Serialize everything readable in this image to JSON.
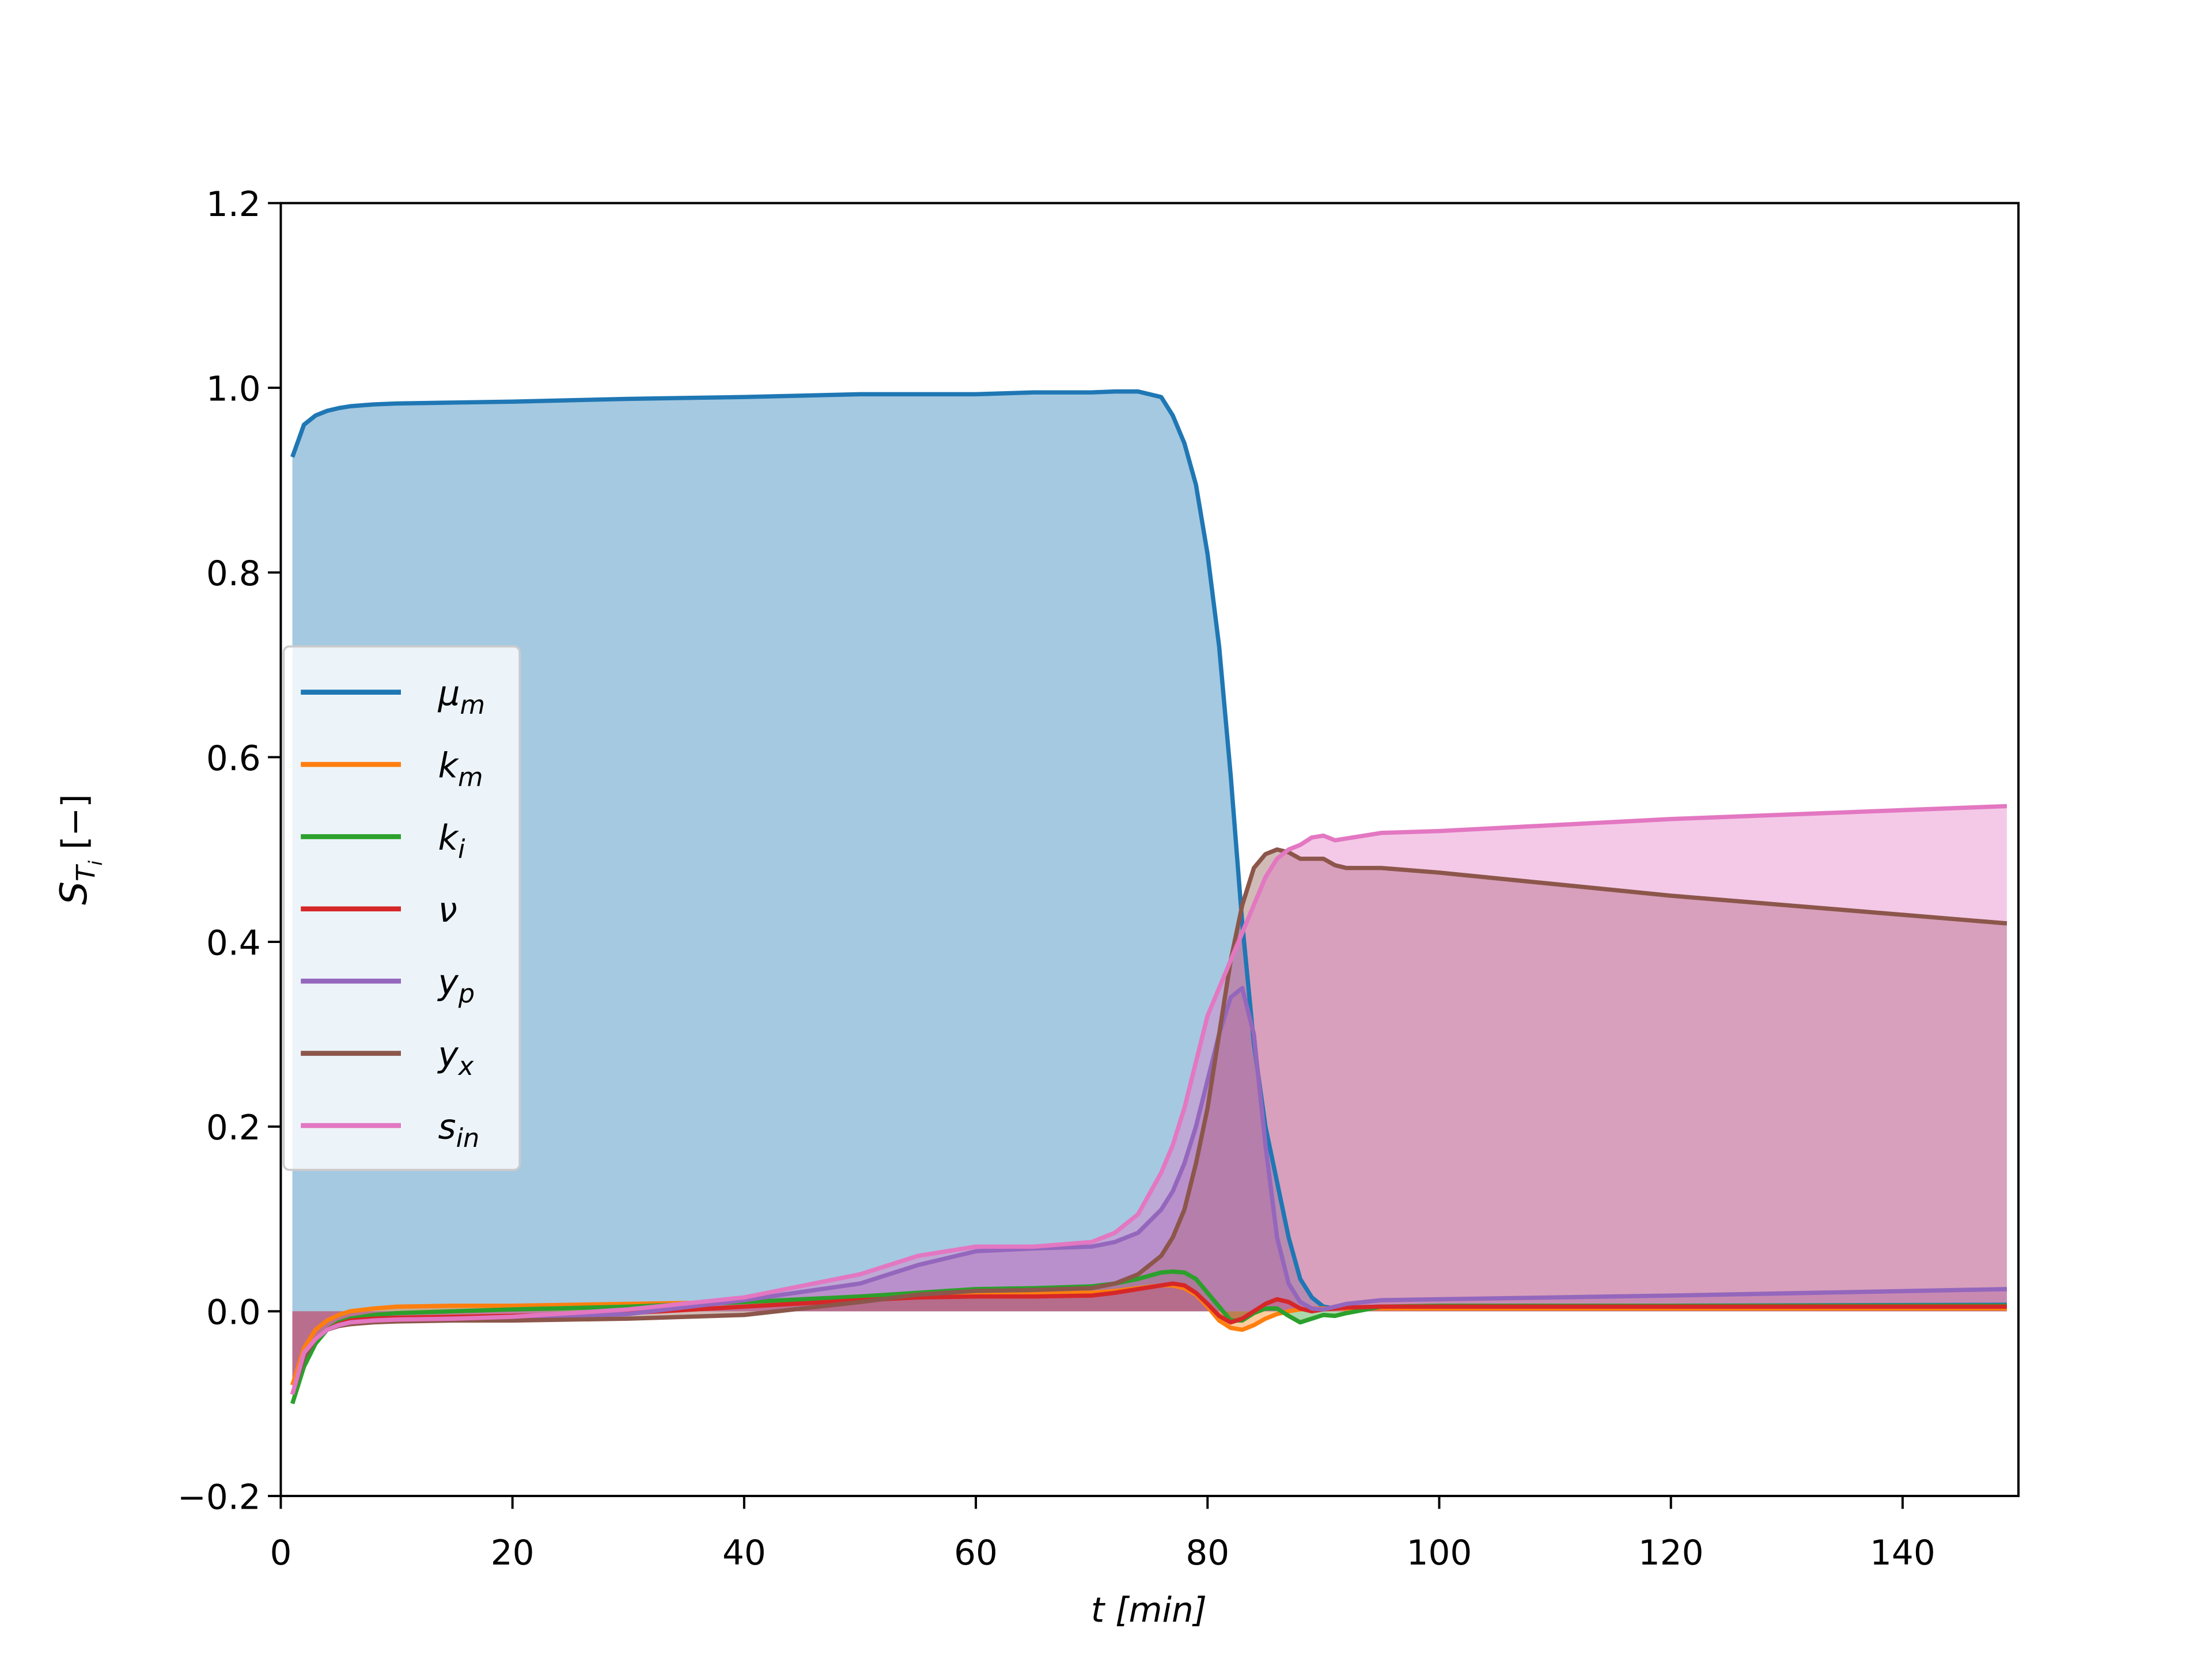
{
  "chart_data": {
    "type": "area",
    "xlabel": "t [min]",
    "ylabel": "STi [−]",
    "xlim": [
      0,
      150
    ],
    "ylim": [
      -0.2,
      1.2
    ],
    "xticks": [
      0,
      20,
      40,
      60,
      80,
      100,
      120,
      140
    ],
    "yticks": [
      {
        "value": -0.2,
        "label": "−0.2"
      },
      {
        "value": 0,
        "label": "0.0"
      },
      0.2,
      0.4,
      0.6,
      0.8,
      {
        "value": 1,
        "label": "1.0"
      },
      1.2
    ],
    "legend": "center left",
    "x": [
      1,
      2,
      3,
      4,
      5,
      6,
      8,
      10,
      15,
      20,
      30,
      40,
      50,
      55,
      60,
      65,
      70,
      72,
      74,
      76,
      77,
      78,
      79,
      80,
      81,
      82,
      83,
      84,
      85,
      86,
      87,
      88,
      89,
      90,
      91,
      92,
      95,
      100,
      120,
      149
    ],
    "series": [
      {
        "name": "μm",
        "color": "#1f77b4",
        "values": [
          0.925,
          0.96,
          0.97,
          0.975,
          0.978,
          0.98,
          0.982,
          0.983,
          0.984,
          0.985,
          0.988,
          0.99,
          0.993,
          0.993,
          0.993,
          0.995,
          0.995,
          0.996,
          0.996,
          0.99,
          0.97,
          0.94,
          0.895,
          0.82,
          0.72,
          0.58,
          0.42,
          0.29,
          0.2,
          0.14,
          0.08,
          0.035,
          0.015,
          0.005,
          0.003,
          0.004,
          0.005,
          0.005,
          0.006,
          0.007
        ]
      },
      {
        "name": "km",
        "color": "#ff7f0e",
        "values": [
          -0.08,
          -0.04,
          -0.02,
          -0.01,
          -0.004,
          0,
          0.003,
          0.005,
          0.006,
          0.006,
          0.008,
          0.01,
          0.015,
          0.018,
          0.02,
          0.02,
          0.02,
          0.022,
          0.025,
          0.028,
          0.028,
          0.025,
          0.018,
          0.005,
          -0.01,
          -0.018,
          -0.02,
          -0.015,
          -0.008,
          -0.003,
          0,
          0.002,
          0.003,
          0.003,
          0.003,
          0.003,
          0.003,
          0.003,
          0.003,
          0.003
        ]
      },
      {
        "name": "ki",
        "color": "#2ca02c",
        "values": [
          -0.1,
          -0.06,
          -0.035,
          -0.02,
          -0.012,
          -0.008,
          -0.004,
          -0.002,
          0,
          0.002,
          0.005,
          0.01,
          0.016,
          0.02,
          0.024,
          0.025,
          0.027,
          0.03,
          0.035,
          0.042,
          0.043,
          0.042,
          0.035,
          0.02,
          0.005,
          -0.01,
          -0.01,
          -0.002,
          0.003,
          0.003,
          -0.005,
          -0.012,
          -0.008,
          -0.004,
          -0.005,
          -0.002,
          0.005,
          0.006,
          0.006,
          0.006
        ]
      },
      {
        "name": "ν",
        "color": "#d62728",
        "values": [
          -0.09,
          -0.05,
          -0.03,
          -0.02,
          -0.014,
          -0.01,
          -0.008,
          -0.007,
          -0.006,
          -0.005,
          -0.002,
          0.005,
          0.012,
          0.015,
          0.016,
          0.016,
          0.017,
          0.02,
          0.024,
          0.028,
          0.03,
          0.028,
          0.02,
          0.008,
          -0.005,
          -0.012,
          -0.008,
          0,
          0.008,
          0.013,
          0.01,
          0.003,
          0,
          0.002,
          0.003,
          0.004,
          0.005,
          0.005,
          0.005,
          0.005
        ]
      },
      {
        "name": "yp",
        "color": "#9467bd",
        "values": [
          -0.09,
          -0.05,
          -0.03,
          -0.02,
          -0.015,
          -0.012,
          -0.01,
          -0.009,
          -0.008,
          -0.007,
          -0.003,
          0.012,
          0.03,
          0.05,
          0.065,
          0.068,
          0.07,
          0.075,
          0.085,
          0.11,
          0.13,
          0.16,
          0.2,
          0.25,
          0.3,
          0.34,
          0.35,
          0.3,
          0.18,
          0.08,
          0.03,
          0.01,
          0.003,
          0.002,
          0.005,
          0.008,
          0.012,
          0.013,
          0.017,
          0.024
        ]
      },
      {
        "name": "yx",
        "color": "#8c564b",
        "values": [
          -0.09,
          -0.05,
          -0.03,
          -0.02,
          -0.016,
          -0.014,
          -0.012,
          -0.011,
          -0.01,
          -0.01,
          -0.008,
          -0.004,
          0.01,
          0.018,
          0.022,
          0.023,
          0.025,
          0.03,
          0.04,
          0.06,
          0.08,
          0.11,
          0.16,
          0.22,
          0.3,
          0.38,
          0.44,
          0.48,
          0.495,
          0.5,
          0.497,
          0.49,
          0.49,
          0.49,
          0.483,
          0.48,
          0.48,
          0.475,
          0.45,
          0.42
        ]
      },
      {
        "name": "sin",
        "color": "#e377c2",
        "values": [
          -0.09,
          -0.045,
          -0.03,
          -0.02,
          -0.015,
          -0.012,
          -0.01,
          -0.009,
          -0.008,
          -0.006,
          0.002,
          0.015,
          0.04,
          0.06,
          0.07,
          0.07,
          0.075,
          0.085,
          0.105,
          0.15,
          0.18,
          0.22,
          0.27,
          0.32,
          0.35,
          0.38,
          0.41,
          0.44,
          0.47,
          0.49,
          0.5,
          0.505,
          0.513,
          0.515,
          0.51,
          0.512,
          0.518,
          0.52,
          0.533,
          0.547
        ]
      }
    ]
  }
}
